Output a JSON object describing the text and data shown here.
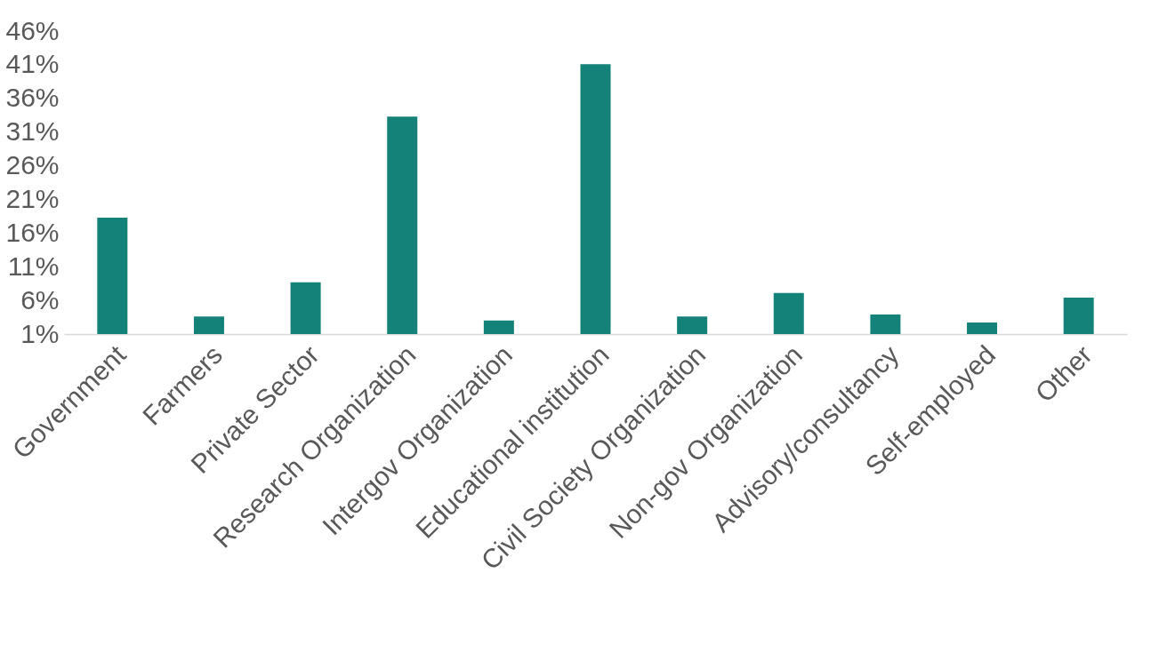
{
  "chart_data": {
    "type": "bar",
    "categories": [
      "Government",
      "Farmers",
      "Private Sector",
      "Research Organization",
      "Intergov Organization",
      "Educational institution",
      "Civil Society Organization",
      "Non-gov Organization",
      "Advisory/consultancy",
      "Self-employed",
      "Other"
    ],
    "values": [
      18.3,
      3.6,
      8.7,
      33.3,
      3.0,
      41.1,
      3.6,
      7.1,
      3.9,
      2.7,
      6.4
    ],
    "color": "#148279",
    "ylim": [
      1,
      46
    ],
    "yticks": [
      {
        "value": 1,
        "label": "1%"
      },
      {
        "value": 6,
        "label": "6%"
      },
      {
        "value": 11,
        "label": "11%"
      },
      {
        "value": 16,
        "label": "16%"
      },
      {
        "value": 21,
        "label": "21%"
      },
      {
        "value": 26,
        "label": "26%"
      },
      {
        "value": 31,
        "label": "31%"
      },
      {
        "value": 36,
        "label": "36%"
      },
      {
        "value": 41,
        "label": "41%"
      },
      {
        "value": 46,
        "label": "46%"
      }
    ],
    "grid": false
  }
}
